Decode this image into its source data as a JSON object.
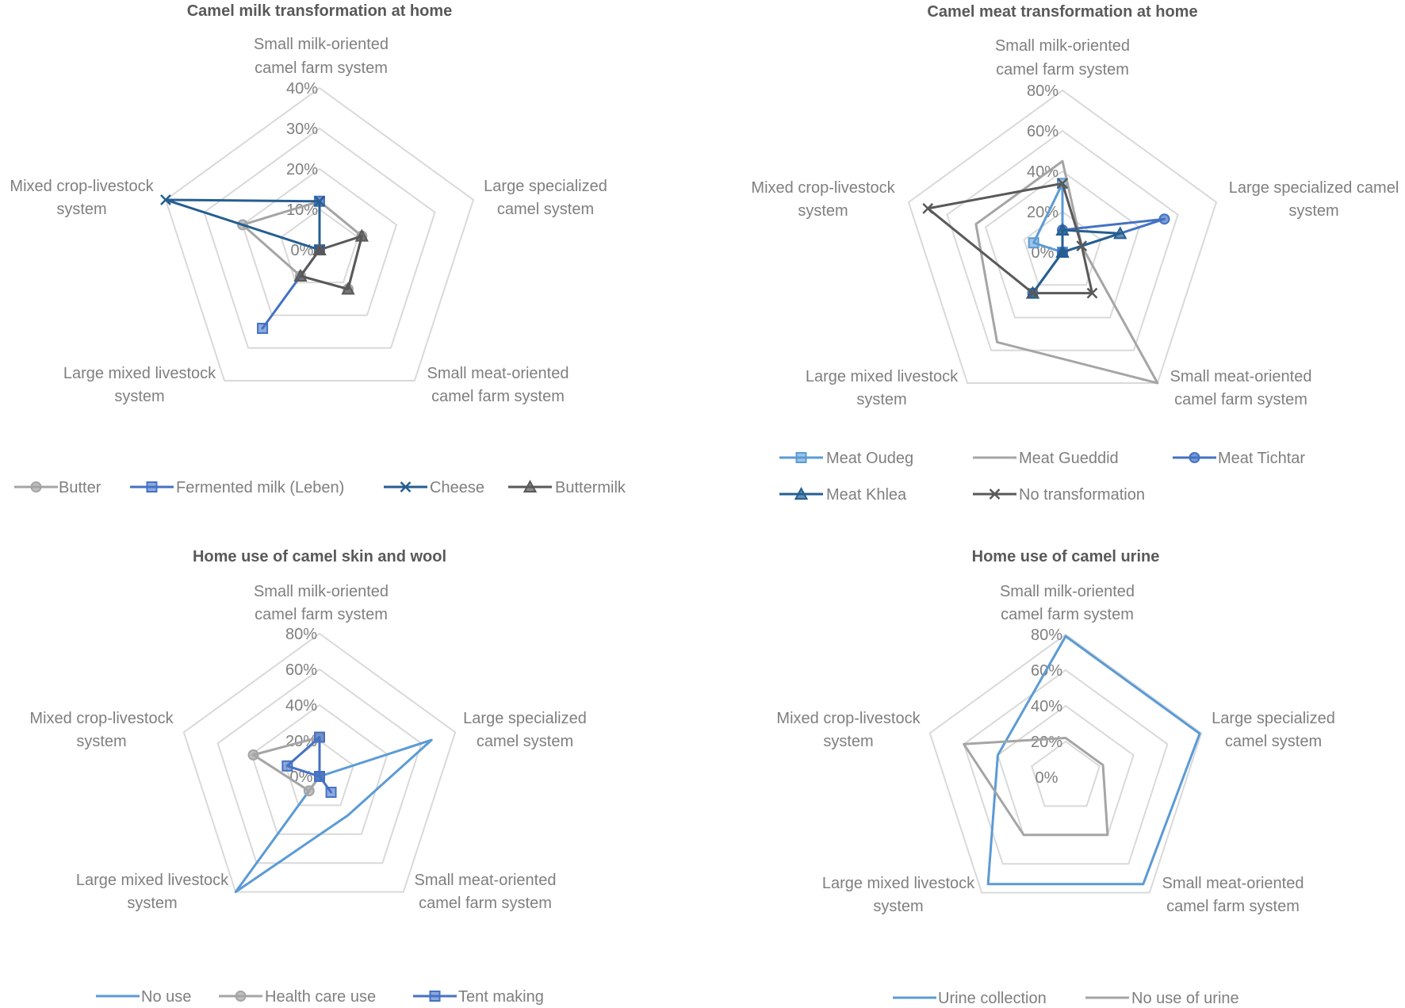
{
  "colors": {
    "light_blue": "#5b9bd5",
    "gray": "#a5a5a5",
    "med_blue": "#4472c4",
    "navy": "#255e91",
    "dark_gray": "#595959"
  },
  "chart_data": [
    {
      "type": "radar",
      "title": "Camel milk transformation  at home",
      "axes": [
        "Small milk-oriented camel farm system",
        "Large specialized camel system",
        "Small meat-oriented camel farm system",
        "Large mixed livestock system",
        "Mixed crop-livestock system"
      ],
      "ticks": [
        "0%",
        "10%",
        "20%",
        "30%",
        "40%"
      ],
      "rmax": 0.4,
      "grid": true,
      "legend_position": "bottom",
      "series": [
        {
          "name": "Butter",
          "values": [
            0.12,
            0.11,
            0.12,
            0.08,
            0.2
          ]
        },
        {
          "name": "Fermented milk (Leben)",
          "values": [
            0.12,
            0.0,
            0.0,
            0.24,
            0.0
          ]
        },
        {
          "name": "Cheese",
          "values": [
            0.12,
            0.0,
            0.0,
            0.0,
            0.4
          ]
        },
        {
          "name": "Buttermilk",
          "values": [
            0.0,
            0.11,
            0.12,
            0.08,
            0.0
          ]
        }
      ]
    },
    {
      "type": "radar",
      "title": "Camel meat transformation  at home",
      "axes": [
        "Small milk-oriented camel farm system",
        "Large specialized camel system",
        "Small meat-oriented camel farm system",
        "Large mixed livestock system",
        "Mixed crop-livestock system"
      ],
      "ticks": [
        "0%",
        "20%",
        "40%",
        "60%",
        "80%"
      ],
      "rmax": 0.8,
      "grid": true,
      "legend_position": "bottom",
      "series": [
        {
          "name": "Meat Oudeg",
          "values": [
            0.34,
            0.0,
            0.0,
            0.0,
            0.15
          ]
        },
        {
          "name": "Meat Gueddid",
          "values": [
            0.45,
            0.1,
            0.8,
            0.55,
            0.45
          ]
        },
        {
          "name": "Meat Tichtar",
          "values": [
            0.11,
            0.53,
            0.0,
            0.25,
            0.0
          ]
        },
        {
          "name": "Meat Khlea",
          "values": [
            0.11,
            0.3,
            0.0,
            0.25,
            0.0
          ]
        },
        {
          "name": "No transformation",
          "values": [
            0.34,
            0.1,
            0.25,
            0.25,
            0.7
          ]
        }
      ]
    },
    {
      "type": "radar",
      "title": "Home use of camel skin and wool",
      "axes": [
        "Small milk-oriented camel farm system",
        "Large specialized camel system",
        "Small meat-oriented camel farm system",
        "Large mixed livestock system",
        "Mixed crop-livestock system"
      ],
      "ticks": [
        "0%",
        "20%",
        "40%",
        "60%",
        "80%"
      ],
      "rmax": 0.8,
      "grid": true,
      "legend_position": "bottom",
      "series": [
        {
          "name": "No use",
          "values": [
            0.0,
            0.66,
            0.27,
            0.8,
            0.0
          ]
        },
        {
          "name": "Health care use",
          "values": [
            0.22,
            0.0,
            0.0,
            0.1,
            0.39
          ]
        },
        {
          "name": "Tent making",
          "values": [
            0.22,
            0.0,
            0.11,
            0.0,
            0.19
          ]
        }
      ]
    },
    {
      "type": "radar",
      "title": "Home use of camel urine",
      "axes": [
        "Small milk-oriented camel farm system",
        "Large specialized camel system",
        "Small meat-oriented camel farm system",
        "Large mixed livestock system",
        "Mixed crop-livestock system"
      ],
      "ticks": [
        "0%",
        "20%",
        "40%",
        "60%",
        "80%"
      ],
      "rmax": 0.8,
      "grid": true,
      "legend_position": "bottom",
      "series": [
        {
          "name": "Urine collection",
          "values": [
            0.79,
            0.79,
            0.74,
            0.74,
            0.4
          ]
        },
        {
          "name": "No use of urine",
          "values": [
            0.22,
            0.22,
            0.4,
            0.4,
            0.6
          ]
        }
      ]
    }
  ]
}
